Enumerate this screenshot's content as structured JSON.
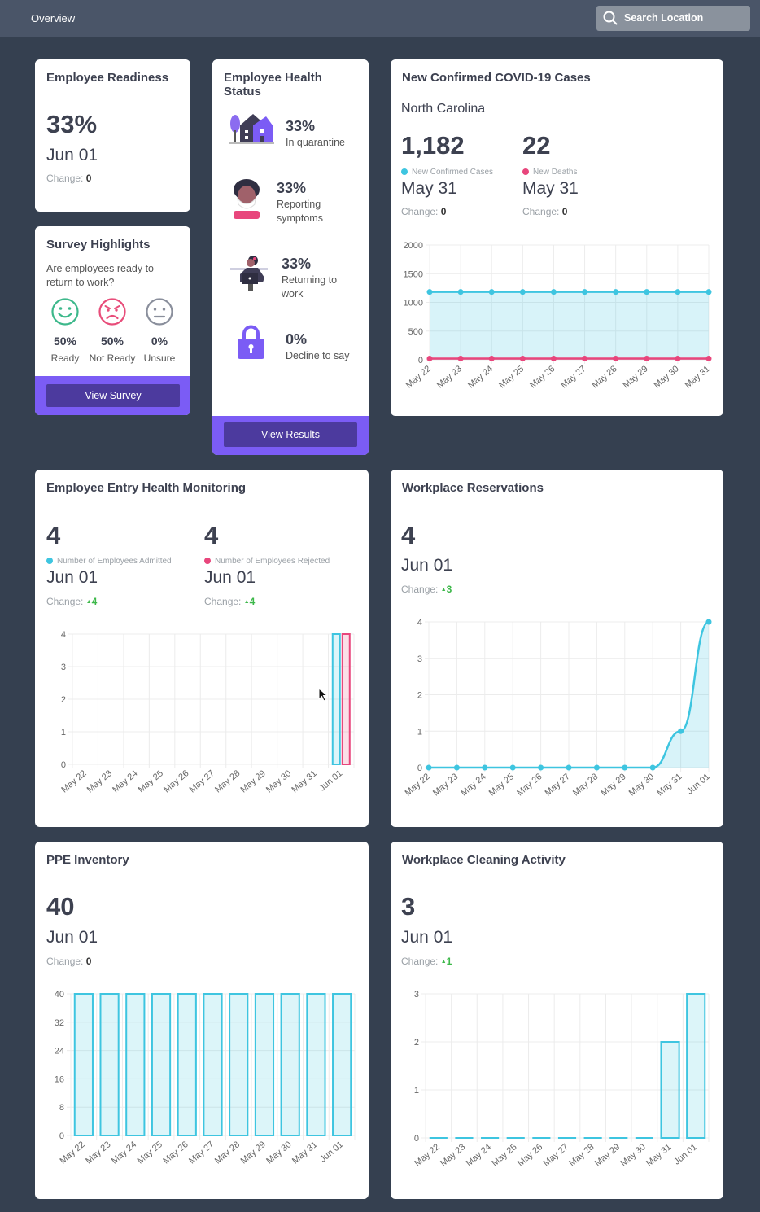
{
  "topbar": {
    "breadcrumb": "Overview",
    "search_placeholder": "Search Location"
  },
  "readiness": {
    "title": "Employee Readiness",
    "value": "33%",
    "date": "Jun 01",
    "change_label": "Change:",
    "change_value": "0"
  },
  "survey": {
    "title": "Survey Highlights",
    "question": "Are employees ready to return to work?",
    "options": [
      {
        "pct": "50%",
        "label": "Ready",
        "icon": "smile-icon",
        "color": "#3db88b"
      },
      {
        "pct": "50%",
        "label": "Not Ready",
        "icon": "angry-icon",
        "color": "#e84d7a"
      },
      {
        "pct": "0%",
        "label": "Unsure",
        "icon": "neutral-face-icon",
        "color": "#8a8f9c"
      }
    ],
    "button": "View Survey"
  },
  "health": {
    "title": "Employee Health Status",
    "items": [
      {
        "pct": "33%",
        "label": "In quarantine",
        "icon": "house-icon"
      },
      {
        "pct": "33%",
        "label": "Reporting symptoms",
        "icon": "masked-person-icon"
      },
      {
        "pct": "33%",
        "label": "Returning to work",
        "icon": "worker-laptop-icon"
      },
      {
        "pct": "0%",
        "label": "Decline to say",
        "icon": "lock-icon"
      }
    ],
    "button": "View Results"
  },
  "covid": {
    "title": "New Confirmed COVID-19 Cases",
    "location": "North Carolina",
    "cases": {
      "value": "1,182",
      "legend": "New Confirmed Cases",
      "date": "May 31",
      "change_label": "Change:",
      "change_value": "0"
    },
    "deaths": {
      "value": "22",
      "legend": "New Deaths",
      "date": "May 31",
      "change_label": "Change:",
      "change_value": "0"
    }
  },
  "entry": {
    "title": "Employee Entry Health Monitoring",
    "admitted": {
      "value": "4",
      "legend": "Number of Employees Admitted",
      "date": "Jun 01",
      "change_label": "Change:",
      "change_value": "4"
    },
    "rejected": {
      "value": "4",
      "legend": "Number of Employees Rejected",
      "date": "Jun 01",
      "change_label": "Change:",
      "change_value": "4"
    }
  },
  "reservations": {
    "title": "Workplace Reservations",
    "value": "4",
    "date": "Jun 01",
    "change_label": "Change:",
    "change_value": "3"
  },
  "ppe": {
    "title": "PPE Inventory",
    "value": "40",
    "date": "Jun 01",
    "change_label": "Change:",
    "change_value": "0"
  },
  "cleaning": {
    "title": "Workplace Cleaning Activity",
    "value": "3",
    "date": "Jun 01",
    "change_label": "Change:",
    "change_value": "1"
  },
  "colors": {
    "cyan": "#3ec5e0",
    "pink": "#e8467c",
    "purple": "#7b5cf5",
    "green": "#3db84a"
  },
  "chart_data": [
    {
      "id": "covid",
      "type": "area",
      "categories": [
        "May 22",
        "May 23",
        "May 24",
        "May 25",
        "May 26",
        "May 27",
        "May 28",
        "May 29",
        "May 30",
        "May 31"
      ],
      "series": [
        {
          "name": "New Confirmed Cases",
          "values": [
            1182,
            1182,
            1182,
            1182,
            1182,
            1182,
            1182,
            1182,
            1182,
            1182
          ],
          "color": "#3ec5e0"
        },
        {
          "name": "New Deaths",
          "values": [
            22,
            22,
            22,
            22,
            22,
            22,
            22,
            22,
            22,
            22
          ],
          "color": "#e8467c"
        }
      ],
      "yticks": [
        "0",
        "500",
        "1000",
        "1500",
        "2000"
      ],
      "ylim": [
        0,
        2000
      ]
    },
    {
      "id": "entry",
      "type": "bar",
      "categories": [
        "May 22",
        "May 23",
        "May 24",
        "May 25",
        "May 26",
        "May 27",
        "May 28",
        "May 29",
        "May 30",
        "May 31",
        "Jun 01"
      ],
      "series": [
        {
          "name": "Number of Employees Admitted",
          "values": [
            0,
            0,
            0,
            0,
            0,
            0,
            0,
            0,
            0,
            0,
            4
          ],
          "color": "#3ec5e0"
        },
        {
          "name": "Number of Employees Rejected",
          "values": [
            0,
            0,
            0,
            0,
            0,
            0,
            0,
            0,
            0,
            0,
            4
          ],
          "color": "#e8467c"
        }
      ],
      "yticks": [
        "0",
        "1",
        "2",
        "3",
        "4"
      ],
      "ylim": [
        0,
        4
      ]
    },
    {
      "id": "reservations",
      "type": "area",
      "categories": [
        "May 22",
        "May 23",
        "May 24",
        "May 25",
        "May 26",
        "May 27",
        "May 28",
        "May 29",
        "May 30",
        "May 31",
        "Jun 01"
      ],
      "series": [
        {
          "values": [
            0,
            0,
            0,
            0,
            0,
            0,
            0,
            0,
            0,
            1,
            4
          ],
          "color": "#3ec5e0"
        }
      ],
      "yticks": [
        "0",
        "1",
        "2",
        "3",
        "4"
      ],
      "ylim": [
        0,
        4
      ]
    },
    {
      "id": "ppe",
      "type": "bar",
      "categories": [
        "May 22",
        "May 23",
        "May 24",
        "May 25",
        "May 26",
        "May 27",
        "May 28",
        "May 29",
        "May 30",
        "May 31",
        "Jun 01"
      ],
      "series": [
        {
          "values": [
            40,
            40,
            40,
            40,
            40,
            40,
            40,
            40,
            40,
            40,
            40
          ],
          "color": "#3ec5e0"
        }
      ],
      "yticks": [
        "0",
        "8",
        "16",
        "24",
        "32",
        "40"
      ],
      "ylim": [
        0,
        40
      ]
    },
    {
      "id": "cleaning",
      "type": "bar",
      "categories": [
        "May 22",
        "May 23",
        "May 24",
        "May 25",
        "May 26",
        "May 27",
        "May 28",
        "May 29",
        "May 30",
        "May 31",
        "Jun 01"
      ],
      "series": [
        {
          "values": [
            0,
            0,
            0,
            0,
            0,
            0,
            0,
            0,
            0,
            2,
            3
          ],
          "color": "#3ec5e0"
        }
      ],
      "yticks": [
        "0",
        "1",
        "2",
        "3"
      ],
      "ylim": [
        0,
        3
      ]
    }
  ]
}
